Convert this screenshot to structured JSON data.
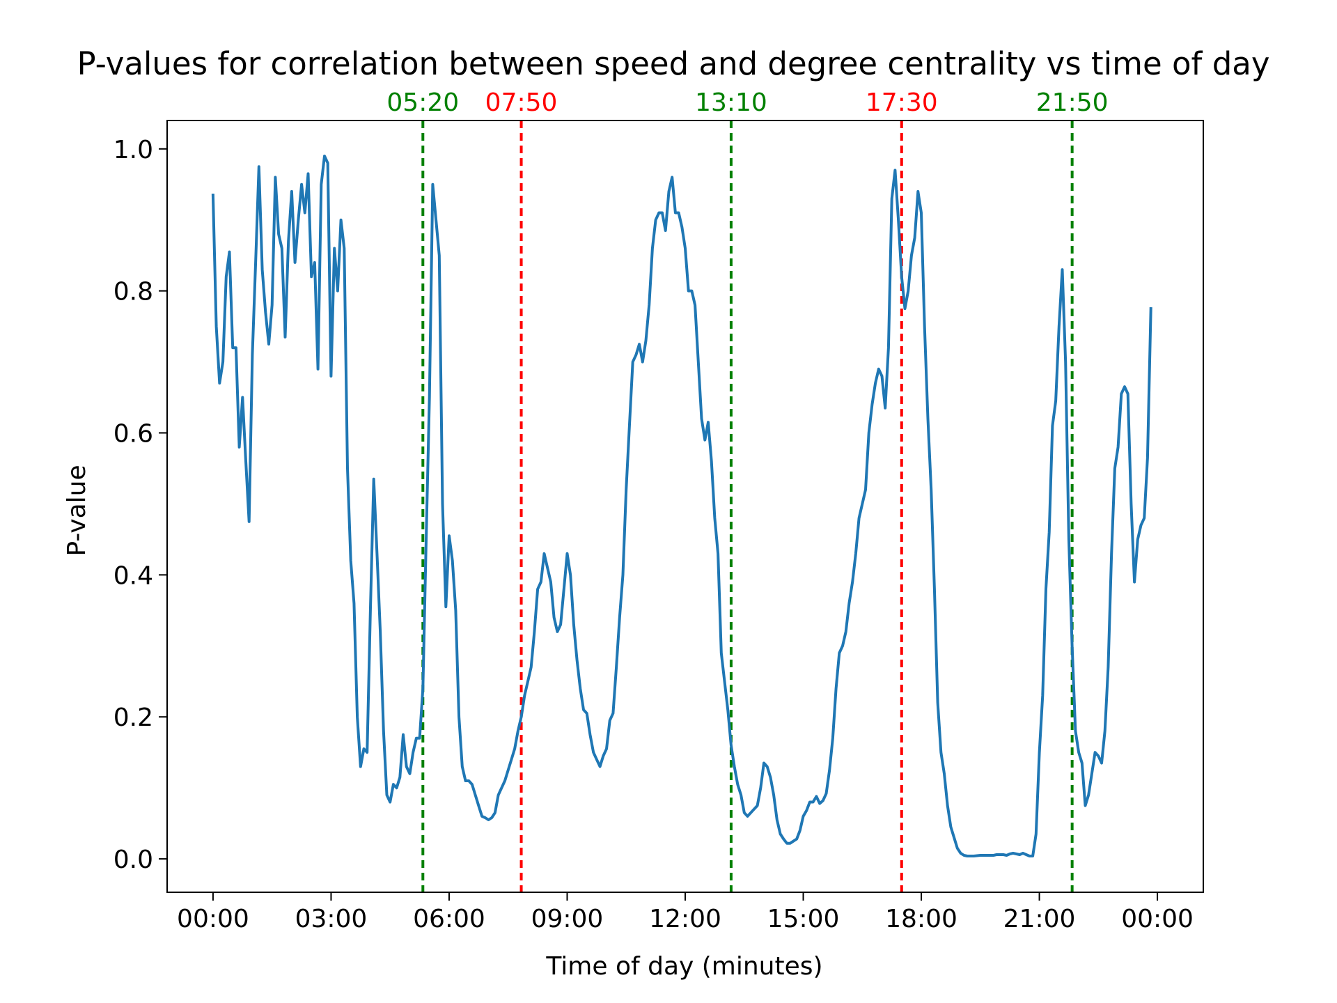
{
  "chart_data": {
    "type": "line",
    "title": "P-values for correlation between speed and degree centrality vs time of day",
    "xlabel": "Time of day (minutes)",
    "ylabel": "P-value",
    "xlim": [
      -70,
      1510
    ],
    "ylim": [
      -0.047,
      1.04
    ],
    "grid": false,
    "legend": "none",
    "x_ticks": [
      {
        "value": 0,
        "label": "00:00"
      },
      {
        "value": 180,
        "label": "03:00"
      },
      {
        "value": 360,
        "label": "06:00"
      },
      {
        "value": 540,
        "label": "09:00"
      },
      {
        "value": 720,
        "label": "12:00"
      },
      {
        "value": 900,
        "label": "15:00"
      },
      {
        "value": 1080,
        "label": "18:00"
      },
      {
        "value": 1260,
        "label": "21:00"
      },
      {
        "value": 1440,
        "label": "00:00"
      }
    ],
    "y_ticks": [
      {
        "value": 0.0,
        "label": "0.0"
      },
      {
        "value": 0.2,
        "label": "0.2"
      },
      {
        "value": 0.4,
        "label": "0.4"
      },
      {
        "value": 0.6,
        "label": "0.6"
      },
      {
        "value": 0.8,
        "label": "0.8"
      },
      {
        "value": 1.0,
        "label": "1.0"
      }
    ],
    "vlines": [
      {
        "x": 320,
        "label": "05:20",
        "color": "#008000"
      },
      {
        "x": 470,
        "label": "07:50",
        "color": "#ff0000"
      },
      {
        "x": 790,
        "label": "13:10",
        "color": "#008000"
      },
      {
        "x": 1050,
        "label": "17:30",
        "color": "#ff0000"
      },
      {
        "x": 1310,
        "label": "21:50",
        "color": "#008000"
      }
    ],
    "series": [
      {
        "color": "#1f77b4",
        "points": [
          [
            0,
            0.935
          ],
          [
            5,
            0.75
          ],
          [
            10,
            0.67
          ],
          [
            15,
            0.7
          ],
          [
            20,
            0.82
          ],
          [
            25,
            0.855
          ],
          [
            30,
            0.72
          ],
          [
            35,
            0.72
          ],
          [
            40,
            0.58
          ],
          [
            45,
            0.65
          ],
          [
            50,
            0.56
          ],
          [
            55,
            0.475
          ],
          [
            60,
            0.71
          ],
          [
            65,
            0.84
          ],
          [
            70,
            0.975
          ],
          [
            75,
            0.83
          ],
          [
            80,
            0.77
          ],
          [
            85,
            0.725
          ],
          [
            90,
            0.78
          ],
          [
            95,
            0.96
          ],
          [
            100,
            0.88
          ],
          [
            105,
            0.86
          ],
          [
            110,
            0.735
          ],
          [
            115,
            0.87
          ],
          [
            120,
            0.94
          ],
          [
            125,
            0.84
          ],
          [
            130,
            0.9
          ],
          [
            135,
            0.95
          ],
          [
            140,
            0.91
          ],
          [
            145,
            0.965
          ],
          [
            150,
            0.82
          ],
          [
            155,
            0.84
          ],
          [
            160,
            0.69
          ],
          [
            165,
            0.95
          ],
          [
            170,
            0.99
          ],
          [
            175,
            0.98
          ],
          [
            180,
            0.68
          ],
          [
            185,
            0.86
          ],
          [
            190,
            0.8
          ],
          [
            195,
            0.9
          ],
          [
            200,
            0.86
          ],
          [
            205,
            0.55
          ],
          [
            210,
            0.42
          ],
          [
            215,
            0.36
          ],
          [
            220,
            0.2
          ],
          [
            225,
            0.13
          ],
          [
            230,
            0.155
          ],
          [
            235,
            0.15
          ],
          [
            240,
            0.35
          ],
          [
            245,
            0.535
          ],
          [
            250,
            0.43
          ],
          [
            255,
            0.32
          ],
          [
            260,
            0.18
          ],
          [
            265,
            0.09
          ],
          [
            270,
            0.08
          ],
          [
            275,
            0.105
          ],
          [
            280,
            0.1
          ],
          [
            285,
            0.115
          ],
          [
            290,
            0.175
          ],
          [
            295,
            0.13
          ],
          [
            300,
            0.12
          ],
          [
            305,
            0.15
          ],
          [
            310,
            0.17
          ],
          [
            315,
            0.17
          ],
          [
            320,
            0.24
          ],
          [
            325,
            0.45
          ],
          [
            330,
            0.65
          ],
          [
            335,
            0.95
          ],
          [
            340,
            0.9
          ],
          [
            345,
            0.85
          ],
          [
            350,
            0.5
          ],
          [
            355,
            0.355
          ],
          [
            360,
            0.455
          ],
          [
            365,
            0.42
          ],
          [
            370,
            0.35
          ],
          [
            375,
            0.2
          ],
          [
            380,
            0.13
          ],
          [
            385,
            0.11
          ],
          [
            390,
            0.11
          ],
          [
            395,
            0.105
          ],
          [
            400,
            0.09
          ],
          [
            405,
            0.075
          ],
          [
            410,
            0.06
          ],
          [
            415,
            0.058
          ],
          [
            420,
            0.055
          ],
          [
            425,
            0.058
          ],
          [
            430,
            0.065
          ],
          [
            435,
            0.09
          ],
          [
            440,
            0.1
          ],
          [
            445,
            0.11
          ],
          [
            450,
            0.125
          ],
          [
            455,
            0.14
          ],
          [
            460,
            0.155
          ],
          [
            465,
            0.18
          ],
          [
            470,
            0.2
          ],
          [
            475,
            0.23
          ],
          [
            480,
            0.25
          ],
          [
            485,
            0.27
          ],
          [
            490,
            0.32
          ],
          [
            495,
            0.38
          ],
          [
            500,
            0.39
          ],
          [
            505,
            0.43
          ],
          [
            510,
            0.41
          ],
          [
            515,
            0.39
          ],
          [
            520,
            0.34
          ],
          [
            525,
            0.32
          ],
          [
            530,
            0.33
          ],
          [
            535,
            0.38
          ],
          [
            540,
            0.43
          ],
          [
            545,
            0.4
          ],
          [
            550,
            0.33
          ],
          [
            555,
            0.28
          ],
          [
            560,
            0.24
          ],
          [
            565,
            0.21
          ],
          [
            570,
            0.205
          ],
          [
            575,
            0.175
          ],
          [
            580,
            0.15
          ],
          [
            585,
            0.14
          ],
          [
            590,
            0.13
          ],
          [
            595,
            0.145
          ],
          [
            600,
            0.155
          ],
          [
            605,
            0.195
          ],
          [
            610,
            0.205
          ],
          [
            615,
            0.27
          ],
          [
            620,
            0.34
          ],
          [
            625,
            0.4
          ],
          [
            630,
            0.52
          ],
          [
            635,
            0.61
          ],
          [
            640,
            0.7
          ],
          [
            645,
            0.71
          ],
          [
            650,
            0.725
          ],
          [
            655,
            0.7
          ],
          [
            660,
            0.73
          ],
          [
            665,
            0.78
          ],
          [
            670,
            0.86
          ],
          [
            675,
            0.9
          ],
          [
            680,
            0.91
          ],
          [
            685,
            0.91
          ],
          [
            690,
            0.885
          ],
          [
            695,
            0.94
          ],
          [
            700,
            0.96
          ],
          [
            705,
            0.91
          ],
          [
            710,
            0.91
          ],
          [
            715,
            0.89
          ],
          [
            720,
            0.86
          ],
          [
            725,
            0.8
          ],
          [
            730,
            0.8
          ],
          [
            735,
            0.78
          ],
          [
            740,
            0.7
          ],
          [
            745,
            0.62
          ],
          [
            750,
            0.59
          ],
          [
            755,
            0.615
          ],
          [
            760,
            0.56
          ],
          [
            765,
            0.48
          ],
          [
            770,
            0.43
          ],
          [
            775,
            0.29
          ],
          [
            780,
            0.25
          ],
          [
            785,
            0.21
          ],
          [
            790,
            0.16
          ],
          [
            795,
            0.13
          ],
          [
            800,
            0.105
          ],
          [
            805,
            0.09
          ],
          [
            810,
            0.065
          ],
          [
            815,
            0.06
          ],
          [
            820,
            0.065
          ],
          [
            825,
            0.07
          ],
          [
            830,
            0.075
          ],
          [
            835,
            0.1
          ],
          [
            840,
            0.135
          ],
          [
            845,
            0.13
          ],
          [
            850,
            0.115
          ],
          [
            855,
            0.09
          ],
          [
            860,
            0.055
          ],
          [
            865,
            0.035
          ],
          [
            870,
            0.028
          ],
          [
            875,
            0.022
          ],
          [
            880,
            0.022
          ],
          [
            885,
            0.025
          ],
          [
            890,
            0.028
          ],
          [
            895,
            0.04
          ],
          [
            900,
            0.06
          ],
          [
            905,
            0.068
          ],
          [
            910,
            0.08
          ],
          [
            915,
            0.08
          ],
          [
            920,
            0.088
          ],
          [
            925,
            0.078
          ],
          [
            930,
            0.082
          ],
          [
            935,
            0.092
          ],
          [
            940,
            0.125
          ],
          [
            945,
            0.17
          ],
          [
            950,
            0.24
          ],
          [
            955,
            0.29
          ],
          [
            960,
            0.3
          ],
          [
            965,
            0.32
          ],
          [
            970,
            0.36
          ],
          [
            975,
            0.39
          ],
          [
            980,
            0.43
          ],
          [
            985,
            0.48
          ],
          [
            990,
            0.5
          ],
          [
            995,
            0.52
          ],
          [
            1000,
            0.6
          ],
          [
            1005,
            0.64
          ],
          [
            1010,
            0.67
          ],
          [
            1015,
            0.69
          ],
          [
            1020,
            0.68
          ],
          [
            1025,
            0.635
          ],
          [
            1030,
            0.72
          ],
          [
            1035,
            0.93
          ],
          [
            1040,
            0.97
          ],
          [
            1045,
            0.9
          ],
          [
            1050,
            0.82
          ],
          [
            1055,
            0.775
          ],
          [
            1060,
            0.8
          ],
          [
            1065,
            0.85
          ],
          [
            1070,
            0.875
          ],
          [
            1075,
            0.94
          ],
          [
            1080,
            0.91
          ],
          [
            1085,
            0.75
          ],
          [
            1090,
            0.62
          ],
          [
            1095,
            0.52
          ],
          [
            1100,
            0.38
          ],
          [
            1105,
            0.22
          ],
          [
            1110,
            0.15
          ],
          [
            1115,
            0.12
          ],
          [
            1120,
            0.075
          ],
          [
            1125,
            0.045
          ],
          [
            1130,
            0.03
          ],
          [
            1135,
            0.015
          ],
          [
            1140,
            0.008
          ],
          [
            1145,
            0.005
          ],
          [
            1150,
            0.004
          ],
          [
            1160,
            0.004
          ],
          [
            1170,
            0.005
          ],
          [
            1180,
            0.005
          ],
          [
            1190,
            0.005
          ],
          [
            1195,
            0.006
          ],
          [
            1200,
            0.006
          ],
          [
            1205,
            0.006
          ],
          [
            1210,
            0.005
          ],
          [
            1215,
            0.007
          ],
          [
            1220,
            0.008
          ],
          [
            1225,
            0.007
          ],
          [
            1230,
            0.006
          ],
          [
            1235,
            0.008
          ],
          [
            1240,
            0.006
          ],
          [
            1245,
            0.004
          ],
          [
            1250,
            0.004
          ],
          [
            1255,
            0.035
          ],
          [
            1260,
            0.15
          ],
          [
            1265,
            0.23
          ],
          [
            1270,
            0.38
          ],
          [
            1275,
            0.46
          ],
          [
            1280,
            0.61
          ],
          [
            1285,
            0.645
          ],
          [
            1290,
            0.75
          ],
          [
            1295,
            0.83
          ],
          [
            1300,
            0.7
          ],
          [
            1305,
            0.45
          ],
          [
            1310,
            0.3
          ],
          [
            1315,
            0.18
          ],
          [
            1320,
            0.15
          ],
          [
            1325,
            0.135
          ],
          [
            1330,
            0.075
          ],
          [
            1335,
            0.09
          ],
          [
            1340,
            0.12
          ],
          [
            1345,
            0.15
          ],
          [
            1350,
            0.145
          ],
          [
            1355,
            0.135
          ],
          [
            1360,
            0.18
          ],
          [
            1365,
            0.27
          ],
          [
            1370,
            0.43
          ],
          [
            1375,
            0.55
          ],
          [
            1380,
            0.58
          ],
          [
            1385,
            0.655
          ],
          [
            1390,
            0.665
          ],
          [
            1395,
            0.655
          ],
          [
            1400,
            0.5
          ],
          [
            1405,
            0.39
          ],
          [
            1410,
            0.45
          ],
          [
            1415,
            0.47
          ],
          [
            1420,
            0.48
          ],
          [
            1425,
            0.565
          ],
          [
            1430,
            0.775
          ]
        ]
      }
    ]
  }
}
